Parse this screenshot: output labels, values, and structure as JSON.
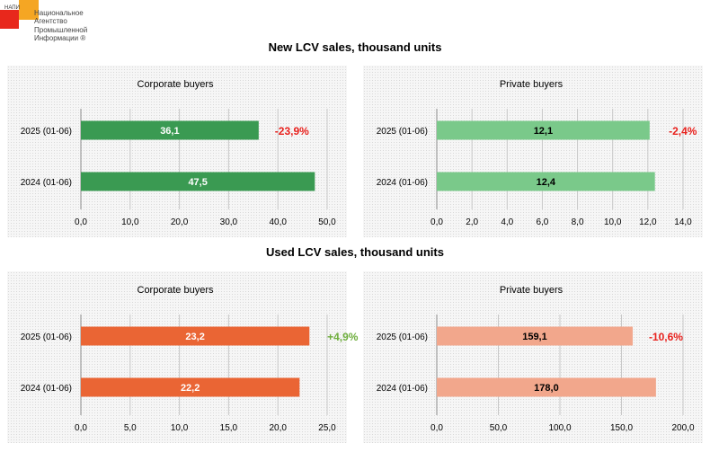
{
  "logo": {
    "abbr": "НАПИ",
    "name_lines": [
      "Национальное",
      "Агентство",
      "Промышленной",
      "Информации ®"
    ],
    "colors": {
      "red": "#e8281c",
      "orange": "#f5a623"
    }
  },
  "sections": {
    "new_title": "New LCV sales, thousand units",
    "used_title": "Used LCV sales, thousand units"
  },
  "chart_data": [
    {
      "type": "bar",
      "orientation": "horizontal",
      "title": "Corporate buyers",
      "categories": [
        "2025 (01-06)",
        "2024 (01-06)"
      ],
      "values": [
        36.1,
        47.5
      ],
      "value_labels": [
        "36,1",
        "47,5"
      ],
      "xlim": [
        0,
        50
      ],
      "ticks": [
        "0,0",
        "10,0",
        "20,0",
        "30,0",
        "40,0",
        "50,0"
      ],
      "change_label": "-23,9%",
      "change_color": "#e8201c",
      "bar_color": "#3a9a52",
      "label_color": "#ffffff",
      "grid": true
    },
    {
      "type": "bar",
      "orientation": "horizontal",
      "title": "Private buyers",
      "categories": [
        "2025 (01-06)",
        "2024 (01-06)"
      ],
      "values": [
        12.1,
        12.4
      ],
      "value_labels": [
        "12,1",
        "12,4"
      ],
      "xlim": [
        0,
        14
      ],
      "ticks": [
        "0,0",
        "2,0",
        "4,0",
        "6,0",
        "8,0",
        "10,0",
        "12,0",
        "14,0"
      ],
      "change_label": "-2,4%",
      "change_color": "#e8201c",
      "bar_color": "#7ac98a",
      "label_color": "#000000",
      "grid": true
    },
    {
      "type": "bar",
      "orientation": "horizontal",
      "title": "Corporate buyers",
      "categories": [
        "2025 (01-06)",
        "2024 (01-06)"
      ],
      "values": [
        23.2,
        22.2
      ],
      "value_labels": [
        "23,2",
        "22,2"
      ],
      "xlim": [
        0,
        25
      ],
      "ticks": [
        "0,0",
        "5,0",
        "10,0",
        "15,0",
        "20,0",
        "25,0"
      ],
      "change_label": "+4,9%",
      "change_color": "#6fae3e",
      "bar_color": "#ea6534",
      "label_color": "#ffffff",
      "grid": true
    },
    {
      "type": "bar",
      "orientation": "horizontal",
      "title": "Private buyers",
      "categories": [
        "2025 (01-06)",
        "2024 (01-06)"
      ],
      "values": [
        159.1,
        178.0
      ],
      "value_labels": [
        "159,1",
        "178,0"
      ],
      "xlim": [
        0,
        200
      ],
      "ticks": [
        "0,0",
        "50,0",
        "100,0",
        "150,0",
        "200,0"
      ],
      "change_label": "-10,6%",
      "change_color": "#e8201c",
      "bar_color": "#f2a78c",
      "label_color": "#000000",
      "grid": true
    }
  ]
}
